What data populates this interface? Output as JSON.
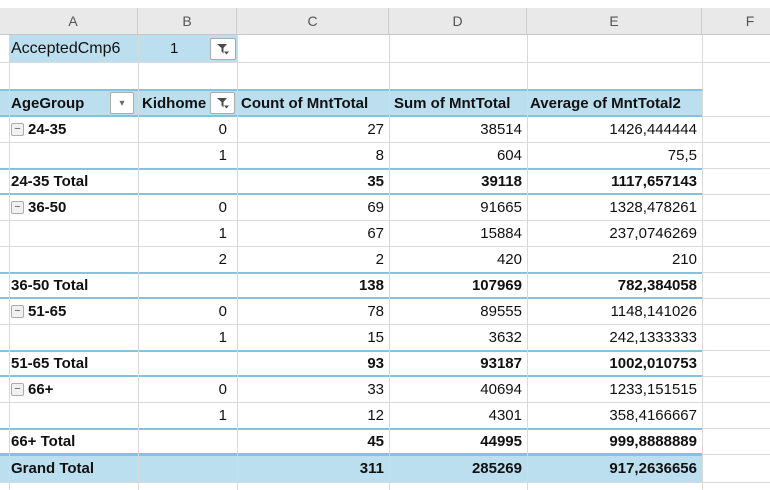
{
  "columns": [
    "A",
    "B",
    "C",
    "D",
    "E",
    "F"
  ],
  "filter_row": {
    "field": "AcceptedCmp6",
    "value": "1",
    "filter_icon": "funnel-icon"
  },
  "pivot_header": {
    "row_label": "AgeGroup",
    "row_label_icon": "chevron-down-icon",
    "col_kidhome": "Kidhome",
    "col_kidhome_icon": "funnel-icon",
    "col_count": "Count of MntTotal",
    "col_sum": "Sum of MntTotal",
    "col_avg": "Average of MntTotal2"
  },
  "colors": {
    "header_fill": "#BCDFEF",
    "accent_border": "#82C3E0",
    "gridline": "#D9D9D9"
  },
  "table": {
    "rows": [
      {
        "kind": "data",
        "collapse": true,
        "label": "24-35",
        "kidhome": "0",
        "count": "27",
        "sum": "38514",
        "avg": "1426,444444"
      },
      {
        "kind": "data",
        "collapse": false,
        "label": "",
        "kidhome": "1",
        "count": "8",
        "sum": "604",
        "avg": "75,5"
      },
      {
        "kind": "subtotal",
        "collapse": false,
        "label": "24-35 Total",
        "kidhome": "",
        "count": "35",
        "sum": "39118",
        "avg": "1117,657143"
      },
      {
        "kind": "data",
        "collapse": true,
        "label": "36-50",
        "kidhome": "0",
        "count": "69",
        "sum": "91665",
        "avg": "1328,478261"
      },
      {
        "kind": "data",
        "collapse": false,
        "label": "",
        "kidhome": "1",
        "count": "67",
        "sum": "15884",
        "avg": "237,0746269"
      },
      {
        "kind": "data",
        "collapse": false,
        "label": "",
        "kidhome": "2",
        "count": "2",
        "sum": "420",
        "avg": "210"
      },
      {
        "kind": "subtotal",
        "collapse": false,
        "label": "36-50 Total",
        "kidhome": "",
        "count": "138",
        "sum": "107969",
        "avg": "782,384058"
      },
      {
        "kind": "data",
        "collapse": true,
        "label": "51-65",
        "kidhome": "0",
        "count": "78",
        "sum": "89555",
        "avg": "1148,141026"
      },
      {
        "kind": "data",
        "collapse": false,
        "label": "",
        "kidhome": "1",
        "count": "15",
        "sum": "3632",
        "avg": "242,1333333"
      },
      {
        "kind": "subtotal",
        "collapse": false,
        "label": "51-65 Total",
        "kidhome": "",
        "count": "93",
        "sum": "93187",
        "avg": "1002,010753"
      },
      {
        "kind": "data",
        "collapse": true,
        "label": "66+",
        "kidhome": "0",
        "count": "33",
        "sum": "40694",
        "avg": "1233,151515"
      },
      {
        "kind": "data",
        "collapse": false,
        "label": "",
        "kidhome": "1",
        "count": "12",
        "sum": "4301",
        "avg": "358,4166667"
      },
      {
        "kind": "subtotal",
        "collapse": false,
        "label": "66+ Total",
        "kidhome": "",
        "count": "45",
        "sum": "44995",
        "avg": "999,8888889"
      },
      {
        "kind": "grand",
        "collapse": false,
        "label": "Grand Total",
        "kidhome": "",
        "count": "311",
        "sum": "285269",
        "avg": "917,2636656"
      }
    ]
  }
}
